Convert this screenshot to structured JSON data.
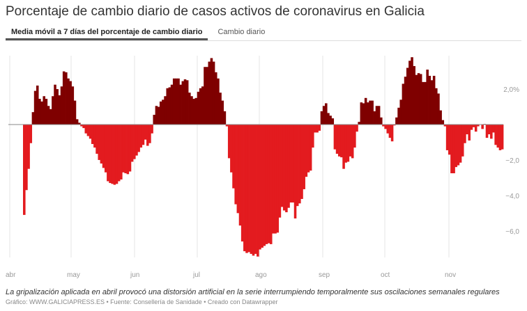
{
  "title": "Porcentaje de cambio diario de casos activos de coronavirus en Galicia",
  "tabs": [
    {
      "label": "Media móvil a 7 días del porcentaje de cambio diario",
      "active": true
    },
    {
      "label": "Cambio diario",
      "active": false
    }
  ],
  "note": "La gripalización aplicada en abril provocó una distorsión artificial en la serie interrumpiendo temporalmente sus oscilaciones semanales regulares",
  "source": "Gráfico: WWW.GALICIAPRESS.ES • Fuente: Consellería de Sanidade • Creado con Datawrapper",
  "chart_data": {
    "type": "bar",
    "title": "",
    "xlabel": "",
    "ylabel": "",
    "ylim": [
      -7.5,
      3.9
    ],
    "grid": "vertical month lines",
    "x_ticks": [
      "abr",
      "may",
      "jun",
      "jul",
      "ago",
      "sep",
      "oct",
      "nov"
    ],
    "y_ticks": [
      {
        "value": 2,
        "label": "2,0%"
      },
      {
        "value": -2,
        "label": "−2,0"
      },
      {
        "value": -4,
        "label": "−4,0"
      },
      {
        "value": -6,
        "label": "−6,0"
      }
    ],
    "colors": {
      "positive": "#7f0000",
      "negative": "#e31b1f",
      "zero_line": "#888888",
      "grid": "#e6e6e6"
    },
    "values": [
      -5.1,
      -3.7,
      -2.5,
      -1.05,
      0.7,
      1.9,
      2.2,
      1.45,
      1.3,
      1.6,
      1.45,
      1.05,
      0.87,
      1.6,
      2.25,
      2.0,
      1.65,
      2.15,
      3.0,
      2.95,
      2.6,
      2.45,
      2.15,
      1.35,
      0.3,
      0.1,
      -0.1,
      -0.2,
      -0.5,
      -0.65,
      -0.8,
      -1.1,
      -1.3,
      -1.65,
      -2.0,
      -2.2,
      -2.45,
      -2.7,
      -3.2,
      -3.3,
      -3.35,
      -3.4,
      -3.35,
      -3.2,
      -3.1,
      -2.7,
      -2.75,
      -2.8,
      -2.65,
      -2.1,
      -1.95,
      -1.75,
      -1.55,
      -1.3,
      -1.15,
      -0.85,
      -1.2,
      -1.05,
      -0.5,
      0.55,
      1.05,
      1.0,
      1.3,
      1.4,
      1.6,
      2.05,
      2.1,
      2.25,
      2.6,
      2.6,
      2.6,
      2.25,
      2.45,
      2.55,
      2.5,
      1.8,
      1.6,
      1.45,
      1.5,
      1.85,
      2.05,
      2.15,
      3.25,
      3.25,
      3.55,
      3.75,
      3.55,
      2.95,
      2.6,
      1.8,
      1.35,
      0.75,
      -0.1,
      -1.9,
      -2.7,
      -3.6,
      -4.5,
      -5.0,
      -5.7,
      -6.6,
      -7.15,
      -7.25,
      -7.2,
      -7.3,
      -7.4,
      -7.3,
      -7.45,
      -7.05,
      -6.95,
      -6.85,
      -6.75,
      -6.7,
      -6.75,
      -6.15,
      -6.15,
      -6.1,
      -5.25,
      -4.65,
      -4.85,
      -4.95,
      -4.7,
      -4.4,
      -4.4,
      -5.3,
      -4.6,
      -4.45,
      -4.2,
      -3.65,
      -2.95,
      -2.7,
      -2.6,
      -1.3,
      -0.45,
      -0.45,
      -0.35,
      0.75,
      1.05,
      1.2,
      0.65,
      0.5,
      0.35,
      -1.4,
      -1.65,
      -1.8,
      -1.85,
      -2.5,
      -2.15,
      -2.1,
      -1.8,
      -1.9,
      -1.3,
      -0.4,
      0.15,
      1.25,
      1.2,
      1.5,
      1.25,
      1.35,
      1.35,
      0.75,
      1.05,
      1.05,
      0.4,
      -0.1,
      -0.25,
      -0.5,
      -0.75,
      -0.95,
      -0.05,
      0.4,
      0.95,
      1.4,
      2.3,
      2.7,
      3.2,
      3.6,
      3.8,
      3.3,
      2.8,
      2.9,
      2.85,
      2.4,
      2.4,
      3.1,
      2.75,
      2.5,
      2.75,
      2.05,
      1.75,
      0.8,
      0.25,
      -0.1,
      -1.45,
      -1.7,
      -2.75,
      -2.75,
      -2.4,
      -2.3,
      -2.15,
      -1.8,
      -1.05,
      -0.55,
      -0.9,
      -0.3,
      -0.15,
      -0.4,
      -0.1,
      0,
      -0.25,
      0.03,
      -0.75,
      -0.55,
      -0.8,
      -0.45,
      -1.15,
      -1.3,
      -1.45,
      -1.4
    ]
  }
}
